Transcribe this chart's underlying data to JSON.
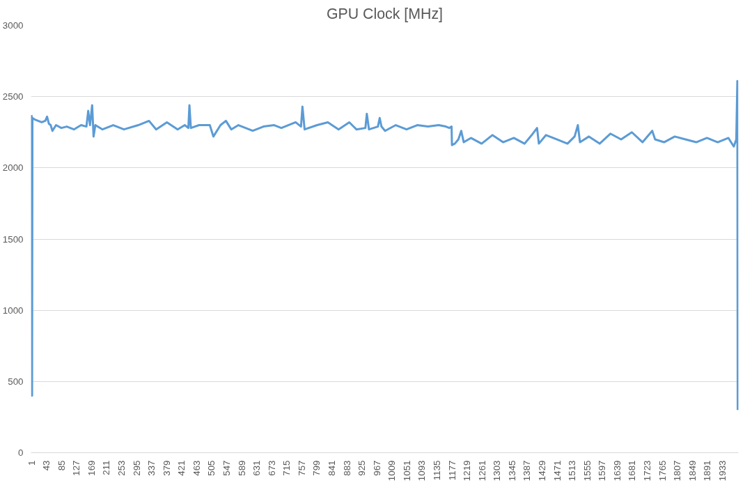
{
  "chart_data": {
    "type": "line",
    "title": "GPU Clock [MHz]",
    "x": [
      1,
      2,
      3,
      4,
      10,
      20,
      30,
      40,
      45,
      50,
      55,
      60,
      70,
      85,
      100,
      120,
      140,
      155,
      160,
      165,
      171,
      175,
      180,
      200,
      230,
      260,
      300,
      330,
      350,
      380,
      410,
      430,
      440,
      443,
      447,
      470,
      500,
      510,
      530,
      545,
      560,
      580,
      620,
      650,
      680,
      700,
      740,
      755,
      759,
      765,
      800,
      830,
      860,
      890,
      910,
      935,
      939,
      945,
      970,
      975,
      980,
      990,
      1020,
      1050,
      1080,
      1110,
      1140,
      1160,
      1170,
      1176,
      1177,
      1185,
      1195,
      1203,
      1210,
      1230,
      1260,
      1290,
      1320,
      1350,
      1380,
      1400,
      1415,
      1420,
      1440,
      1470,
      1500,
      1520,
      1529,
      1535,
      1560,
      1590,
      1620,
      1650,
      1680,
      1710,
      1737,
      1745,
      1770,
      1800,
      1830,
      1860,
      1890,
      1920,
      1950,
      1965,
      1972,
      1975,
      1976
    ],
    "series": [
      {
        "color": "#5b9bd5",
        "values": [
          2370,
          2360,
          400,
          2350,
          2340,
          2330,
          2320,
          2330,
          2360,
          2310,
          2300,
          2260,
          2300,
          2280,
          2290,
          2270,
          2300,
          2290,
          2400,
          2300,
          2440,
          2220,
          2300,
          2270,
          2300,
          2270,
          2300,
          2330,
          2270,
          2320,
          2270,
          2300,
          2280,
          2440,
          2280,
          2300,
          2300,
          2220,
          2300,
          2330,
          2270,
          2300,
          2260,
          2290,
          2300,
          2280,
          2320,
          2290,
          2430,
          2270,
          2300,
          2320,
          2270,
          2320,
          2270,
          2280,
          2380,
          2270,
          2290,
          2350,
          2290,
          2260,
          2300,
          2270,
          2300,
          2290,
          2300,
          2290,
          2280,
          2290,
          2160,
          2170,
          2200,
          2260,
          2180,
          2210,
          2170,
          2230,
          2180,
          2210,
          2170,
          2230,
          2280,
          2170,
          2230,
          2200,
          2170,
          2220,
          2300,
          2180,
          2220,
          2170,
          2240,
          2200,
          2250,
          2180,
          2260,
          2200,
          2180,
          2220,
          2200,
          2180,
          2210,
          2180,
          2210,
          2150,
          2200,
          2610,
          300
        ]
      }
    ],
    "xlim": [
      0,
      1978
    ],
    "ylim": [
      0,
      3000
    ],
    "yticks": [
      0,
      500,
      1000,
      1500,
      2000,
      2500,
      3000
    ],
    "xticks": [
      1,
      43,
      85,
      127,
      169,
      211,
      253,
      295,
      337,
      379,
      421,
      463,
      505,
      547,
      589,
      631,
      673,
      715,
      757,
      799,
      841,
      883,
      925,
      967,
      1009,
      1051,
      1093,
      1135,
      1177,
      1219,
      1261,
      1303,
      1345,
      1387,
      1429,
      1471,
      1513,
      1555,
      1597,
      1639,
      1681,
      1723,
      1765,
      1807,
      1849,
      1891,
      1933
    ],
    "grid": "y"
  }
}
